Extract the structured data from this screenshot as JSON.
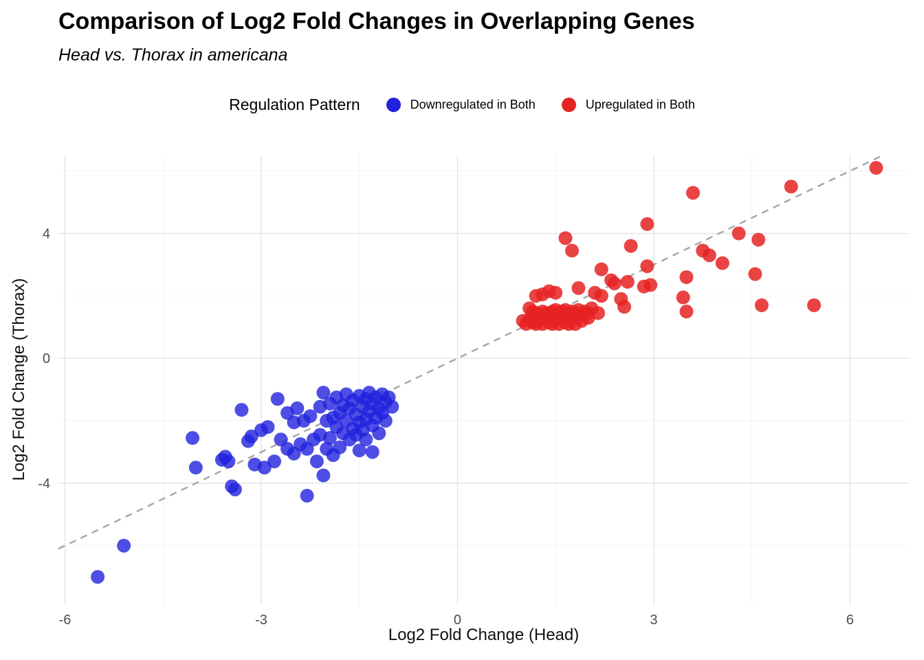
{
  "chart_data": {
    "type": "scatter",
    "title": "Comparison of Log2 Fold Changes in Overlapping Genes",
    "subtitle": "Head vs. Thorax in americana",
    "xlabel": "Log2 Fold Change (Head)",
    "ylabel": "Log2 Fold Change (Thorax)",
    "legend_title": "Regulation Pattern",
    "legend_position": "top",
    "grid": true,
    "xlim": [
      -6.1,
      6.9
    ],
    "ylim": [
      -7.9,
      6.5
    ],
    "x_ticks": [
      -6,
      -3,
      0,
      3,
      6
    ],
    "y_ticks": [
      -4,
      0,
      4
    ],
    "x_minor_ticks": [
      -4.5,
      -1.5,
      1.5,
      4.5
    ],
    "y_minor_ticks": [
      -6,
      -2,
      2,
      6
    ],
    "identity_line": {
      "style": "dashed",
      "equation": "y = x",
      "color": "#a8a8a8"
    },
    "point_radius": 10,
    "colors": {
      "grid_major": "#e4e4e4",
      "grid_minor": "#f2f2f2",
      "tick_text": "#4d4d4d",
      "background": "#ffffff"
    },
    "series": [
      {
        "name": "Downregulated in Both",
        "color": "#2222dd",
        "opacity": 0.8,
        "points": [
          [
            -5.5,
            -7.0
          ],
          [
            -5.1,
            -6.0
          ],
          [
            -4.05,
            -2.55
          ],
          [
            -4.0,
            -3.5
          ],
          [
            -3.6,
            -3.25
          ],
          [
            -3.55,
            -3.15
          ],
          [
            -3.5,
            -3.3
          ],
          [
            -3.45,
            -4.1
          ],
          [
            -3.4,
            -4.2
          ],
          [
            -3.3,
            -1.65
          ],
          [
            -3.2,
            -2.65
          ],
          [
            -3.15,
            -2.5
          ],
          [
            -3.1,
            -3.4
          ],
          [
            -3.0,
            -2.3
          ],
          [
            -2.95,
            -3.5
          ],
          [
            -2.9,
            -2.2
          ],
          [
            -2.8,
            -3.3
          ],
          [
            -2.75,
            -1.3
          ],
          [
            -2.7,
            -2.6
          ],
          [
            -2.6,
            -1.75
          ],
          [
            -2.6,
            -2.9
          ],
          [
            -2.5,
            -2.05
          ],
          [
            -2.5,
            -3.05
          ],
          [
            -2.45,
            -1.6
          ],
          [
            -2.4,
            -2.75
          ],
          [
            -2.35,
            -2.0
          ],
          [
            -2.3,
            -2.9
          ],
          [
            -2.3,
            -4.4
          ],
          [
            -2.25,
            -1.85
          ],
          [
            -2.2,
            -2.6
          ],
          [
            -2.15,
            -3.3
          ],
          [
            -2.1,
            -1.55
          ],
          [
            -2.1,
            -2.45
          ],
          [
            -2.05,
            -1.1
          ],
          [
            -2.05,
            -3.75
          ],
          [
            -2.0,
            -2.0
          ],
          [
            -2.0,
            -2.9
          ],
          [
            -1.95,
            -1.45
          ],
          [
            -1.95,
            -2.55
          ],
          [
            -1.9,
            -1.9
          ],
          [
            -1.9,
            -3.1
          ],
          [
            -1.85,
            -1.25
          ],
          [
            -1.85,
            -2.2
          ],
          [
            -1.8,
            -1.75
          ],
          [
            -1.8,
            -2.85
          ],
          [
            -1.75,
            -1.5
          ],
          [
            -1.75,
            -2.4
          ],
          [
            -1.7,
            -1.15
          ],
          [
            -1.7,
            -2.0
          ],
          [
            -1.65,
            -1.6
          ],
          [
            -1.65,
            -2.6
          ],
          [
            -1.6,
            -1.35
          ],
          [
            -1.6,
            -2.25
          ],
          [
            -1.55,
            -1.8
          ],
          [
            -1.55,
            -2.45
          ],
          [
            -1.5,
            -1.2
          ],
          [
            -1.5,
            -2.05
          ],
          [
            -1.5,
            -2.95
          ],
          [
            -1.45,
            -1.55
          ],
          [
            -1.45,
            -2.3
          ],
          [
            -1.4,
            -1.3
          ],
          [
            -1.4,
            -1.95
          ],
          [
            -1.4,
            -2.6
          ],
          [
            -1.35,
            -1.1
          ],
          [
            -1.35,
            -1.7
          ],
          [
            -1.3,
            -1.45
          ],
          [
            -1.3,
            -2.15
          ],
          [
            -1.3,
            -3.0
          ],
          [
            -1.25,
            -1.25
          ],
          [
            -1.25,
            -1.9
          ],
          [
            -1.2,
            -1.6
          ],
          [
            -1.2,
            -2.4
          ],
          [
            -1.15,
            -1.15
          ],
          [
            -1.15,
            -1.75
          ],
          [
            -1.1,
            -1.4
          ],
          [
            -1.1,
            -2.0
          ],
          [
            -1.05,
            -1.25
          ],
          [
            -1.0,
            -1.55
          ]
        ]
      },
      {
        "name": "Upregulated in Both",
        "color": "#e62222",
        "opacity": 0.85,
        "points": [
          [
            6.4,
            6.1
          ],
          [
            5.1,
            5.5
          ],
          [
            3.6,
            5.3
          ],
          [
            2.9,
            4.3
          ],
          [
            4.3,
            4.0
          ],
          [
            1.65,
            3.85
          ],
          [
            4.6,
            3.8
          ],
          [
            2.65,
            3.6
          ],
          [
            1.75,
            3.45
          ],
          [
            3.75,
            3.45
          ],
          [
            3.85,
            3.3
          ],
          [
            4.05,
            3.05
          ],
          [
            2.9,
            2.95
          ],
          [
            2.2,
            2.85
          ],
          [
            4.55,
            2.7
          ],
          [
            3.5,
            2.6
          ],
          [
            2.35,
            2.5
          ],
          [
            2.4,
            2.4
          ],
          [
            2.6,
            2.45
          ],
          [
            2.95,
            2.35
          ],
          [
            2.85,
            2.3
          ],
          [
            1.85,
            2.25
          ],
          [
            1.4,
            2.15
          ],
          [
            2.1,
            2.1
          ],
          [
            1.3,
            2.05
          ],
          [
            1.5,
            2.1
          ],
          [
            2.2,
            2.0
          ],
          [
            1.2,
            2.0
          ],
          [
            3.45,
            1.95
          ],
          [
            2.5,
            1.9
          ],
          [
            4.65,
            1.7
          ],
          [
            5.45,
            1.7
          ],
          [
            2.55,
            1.65
          ],
          [
            3.5,
            1.5
          ],
          [
            1.1,
            1.6
          ],
          [
            1.15,
            1.5
          ],
          [
            1.2,
            1.45
          ],
          [
            1.3,
            1.5
          ],
          [
            1.35,
            1.45
          ],
          [
            1.45,
            1.5
          ],
          [
            1.5,
            1.55
          ],
          [
            1.55,
            1.45
          ],
          [
            1.6,
            1.5
          ],
          [
            1.65,
            1.55
          ],
          [
            1.7,
            1.4
          ],
          [
            1.75,
            1.5
          ],
          [
            1.8,
            1.45
          ],
          [
            1.85,
            1.55
          ],
          [
            1.9,
            1.4
          ],
          [
            1.95,
            1.5
          ],
          [
            2.0,
            1.45
          ],
          [
            2.05,
            1.6
          ],
          [
            1.0,
            1.2
          ],
          [
            1.05,
            1.1
          ],
          [
            1.1,
            1.25
          ],
          [
            1.15,
            1.15
          ],
          [
            1.2,
            1.1
          ],
          [
            1.25,
            1.2
          ],
          [
            1.3,
            1.1
          ],
          [
            1.35,
            1.25
          ],
          [
            1.4,
            1.15
          ],
          [
            1.45,
            1.1
          ],
          [
            1.5,
            1.2
          ],
          [
            1.55,
            1.1
          ],
          [
            1.6,
            1.25
          ],
          [
            1.65,
            1.15
          ],
          [
            1.7,
            1.1
          ],
          [
            1.75,
            1.2
          ],
          [
            1.8,
            1.1
          ],
          [
            1.9,
            1.2
          ],
          [
            2.0,
            1.3
          ],
          [
            2.15,
            1.45
          ]
        ]
      }
    ]
  }
}
